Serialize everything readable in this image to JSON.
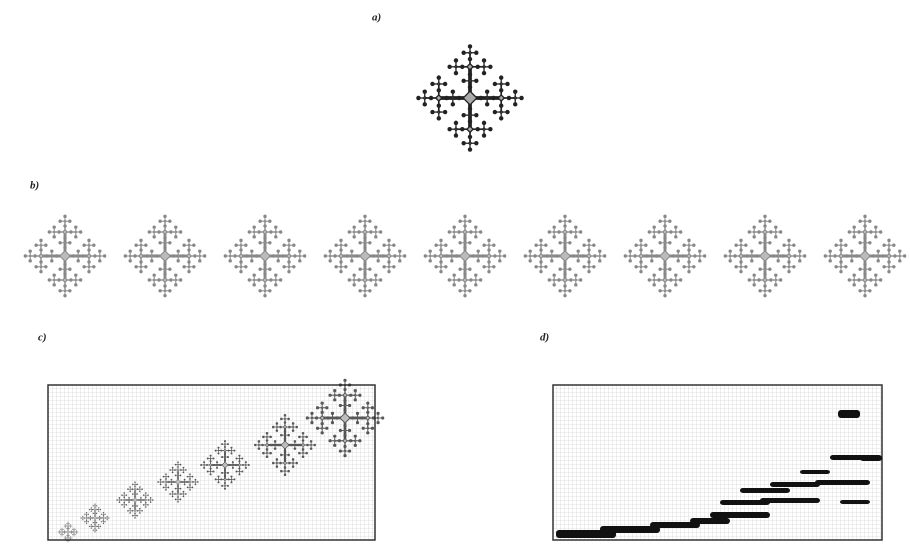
{
  "panels": {
    "a": "a)",
    "b": "b)",
    "c": "c)",
    "d": "d)"
  }
}
